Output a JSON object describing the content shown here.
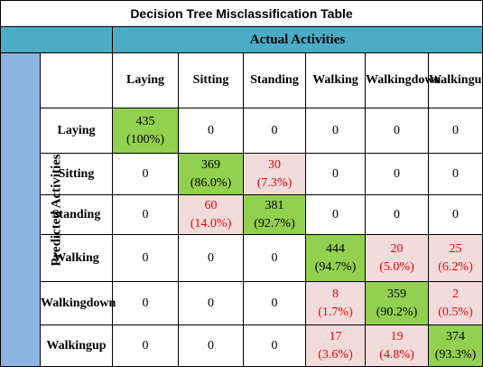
{
  "title": "Decision Tree Misclassification Table",
  "header_fill": "#4bacc6",
  "side_fill": "#8db3e2",
  "correct_fill": "#92d050",
  "miss_fill": "#f2dcdb",
  "miss_text_color": "#ff0000",
  "actual_label": "Actual Activities",
  "predicted_label": "Predicted Activities",
  "columns": [
    {
      "line1": "Laying",
      "line2": ""
    },
    {
      "line1": "Sitting",
      "line2": ""
    },
    {
      "line1": "Standing",
      "line2": ""
    },
    {
      "line1": "Walking",
      "line2": ""
    },
    {
      "line1": "Walking",
      "line2": "down"
    },
    {
      "line1": "Walking",
      "line2": "up"
    }
  ],
  "rows": [
    {
      "label1": "Laying",
      "label2": "",
      "cells": [
        {
          "v": "435",
          "p": "(100%)",
          "kind": "correct"
        },
        {
          "v": "0",
          "p": "",
          "kind": "zero"
        },
        {
          "v": "0",
          "p": "",
          "kind": "zero"
        },
        {
          "v": "0",
          "p": "",
          "kind": "zero"
        },
        {
          "v": "0",
          "p": "",
          "kind": "zero"
        },
        {
          "v": "0",
          "p": "",
          "kind": "zero"
        }
      ]
    },
    {
      "label1": "Sitting",
      "label2": "",
      "cells": [
        {
          "v": "0",
          "p": "",
          "kind": "zero"
        },
        {
          "v": "369",
          "p": "(86.0%)",
          "kind": "correct"
        },
        {
          "v": "30",
          "p": "(7.3%)",
          "kind": "miss"
        },
        {
          "v": "0",
          "p": "",
          "kind": "zero"
        },
        {
          "v": "0",
          "p": "",
          "kind": "zero"
        },
        {
          "v": "0",
          "p": "",
          "kind": "zero"
        }
      ]
    },
    {
      "label1": "Standing",
      "label2": "",
      "cells": [
        {
          "v": "0",
          "p": "",
          "kind": "zero"
        },
        {
          "v": "60",
          "p": "(14.0%)",
          "kind": "miss"
        },
        {
          "v": "381",
          "p": "(92.7%)",
          "kind": "correct"
        },
        {
          "v": "0",
          "p": "",
          "kind": "zero"
        },
        {
          "v": "0",
          "p": "",
          "kind": "zero"
        },
        {
          "v": "0",
          "p": "",
          "kind": "zero"
        }
      ]
    },
    {
      "label1": "Walking",
      "label2": "",
      "cells": [
        {
          "v": "0",
          "p": "",
          "kind": "zero"
        },
        {
          "v": "0",
          "p": "",
          "kind": "zero"
        },
        {
          "v": "0",
          "p": "",
          "kind": "zero"
        },
        {
          "v": "444",
          "p": "(94.7%)",
          "kind": "correct"
        },
        {
          "v": "20",
          "p": "(5.0%)",
          "kind": "miss"
        },
        {
          "v": "25",
          "p": "(6.2%)",
          "kind": "miss"
        }
      ]
    },
    {
      "label1": "Walking",
      "label2": "down",
      "cells": [
        {
          "v": "0",
          "p": "",
          "kind": "zero"
        },
        {
          "v": "0",
          "p": "",
          "kind": "zero"
        },
        {
          "v": "0",
          "p": "",
          "kind": "zero"
        },
        {
          "v": "8",
          "p": "(1.7%)",
          "kind": "miss"
        },
        {
          "v": "359",
          "p": "(90.2%)",
          "kind": "correct"
        },
        {
          "v": "2",
          "p": "(0.5%)",
          "kind": "miss"
        }
      ]
    },
    {
      "label1": "Walking",
      "label2": "up",
      "cells": [
        {
          "v": "0",
          "p": "",
          "kind": "zero"
        },
        {
          "v": "0",
          "p": "",
          "kind": "zero"
        },
        {
          "v": "0",
          "p": "",
          "kind": "zero"
        },
        {
          "v": "17",
          "p": "(3.6%)",
          "kind": "miss"
        },
        {
          "v": "19",
          "p": "(4.8%)",
          "kind": "miss"
        },
        {
          "v": "374",
          "p": "(93.3%)",
          "kind": "correct"
        }
      ]
    }
  ]
}
